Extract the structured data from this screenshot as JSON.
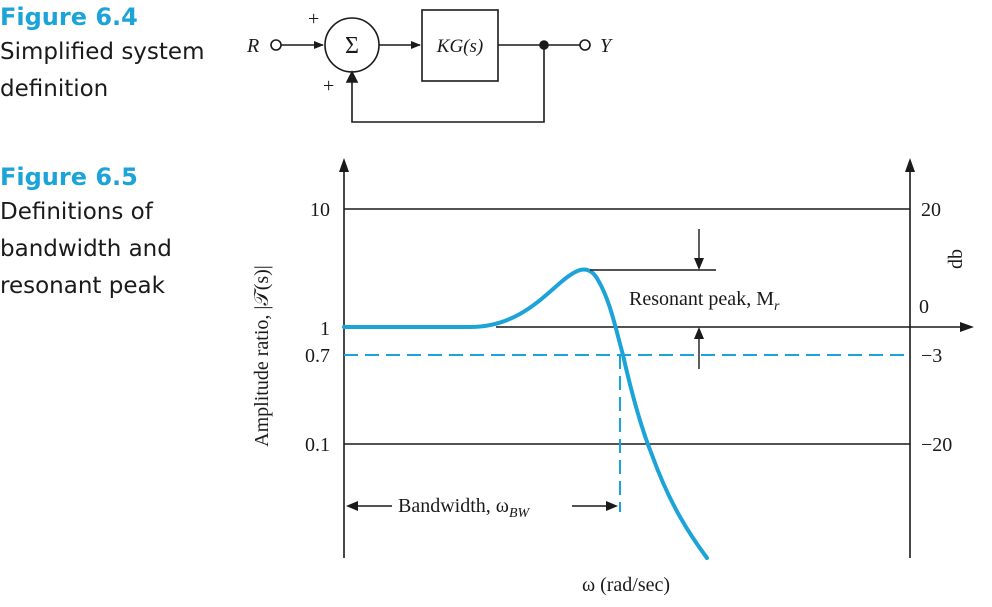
{
  "figure_6_4": {
    "number": "Figure 6.4",
    "caption": "Simplified system\ndefinition",
    "input_label": "R",
    "output_label": "Y",
    "summer_symbol": "Σ",
    "plus_top": "+",
    "plus_bottom": "+",
    "block_label": "KG(s)"
  },
  "figure_6_5": {
    "number": "Figure 6.5",
    "caption": "Definitions of\nbandwidth and\nresonant peak",
    "left_axis_label": "Amplitude ratio, |𝒯(s)|",
    "right_axis_label": "db",
    "x_axis_label": "ω (rad/sec)",
    "left_ticks": [
      "10",
      "1",
      "0.7",
      "0.1"
    ],
    "right_ticks": [
      "20",
      "0",
      "−3",
      "−20"
    ],
    "resonant_peak_label": "Resonant peak, M",
    "resonant_peak_subscript": "r",
    "bandwidth_label": "Bandwidth, ω",
    "bandwidth_subscript": "BW",
    "curve_color": "#1ca4d8"
  }
}
